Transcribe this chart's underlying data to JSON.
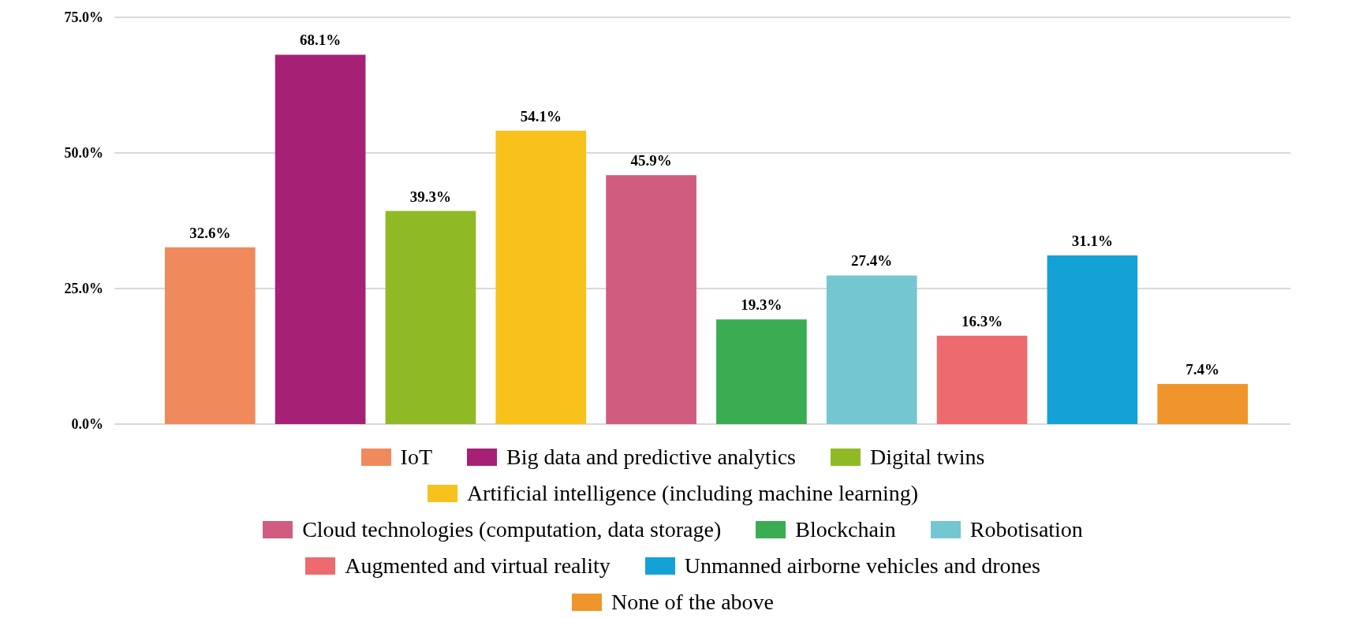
{
  "chart_data": {
    "type": "bar",
    "categories": [
      null
    ],
    "series": [
      {
        "name": "IoT",
        "color": "#f08a5d",
        "values": [
          32.6
        ],
        "value_labels": [
          "32.6%"
        ]
      },
      {
        "name": "Big data and predictive analytics",
        "color": "#a62175",
        "values": [
          68.1
        ],
        "value_labels": [
          "68.1%"
        ]
      },
      {
        "name": "Digital twins",
        "color": "#8fba26",
        "values": [
          39.3
        ],
        "value_labels": [
          "39.3%"
        ]
      },
      {
        "name": "Artificial intelligence (including machine learning)",
        "color": "#f8c11c",
        "values": [
          54.1
        ],
        "value_labels": [
          "54.1%"
        ]
      },
      {
        "name": "Cloud technologies (computation, data storage)",
        "color": "#d05c80",
        "values": [
          45.9
        ],
        "value_labels": [
          "45.9%"
        ]
      },
      {
        "name": "Blockchain",
        "color": "#3aad53",
        "values": [
          19.3
        ],
        "value_labels": [
          "19.3%"
        ]
      },
      {
        "name": "Robotisation",
        "color": "#74c6d1",
        "values": [
          27.4
        ],
        "value_labels": [
          "27.4%"
        ]
      },
      {
        "name": "Augmented and virtual reality",
        "color": "#ed6b6e",
        "values": [
          16.3
        ],
        "value_labels": [
          "16.3%"
        ]
      },
      {
        "name": "Unmanned airborne vehicles and drones",
        "color": "#14a2d6",
        "values": [
          31.1
        ],
        "value_labels": [
          "31.1%"
        ]
      },
      {
        "name": "None of the above",
        "color": "#f0952b",
        "values": [
          7.4
        ],
        "value_labels": [
          "7.4%"
        ]
      }
    ],
    "ylim": [
      0,
      75
    ],
    "yticks": [
      {
        "value": 0,
        "label": "0.0%"
      },
      {
        "value": 25,
        "label": "25.0%"
      },
      {
        "value": 50,
        "label": "50.0%"
      },
      {
        "value": 75,
        "label": "75.0%"
      }
    ],
    "grid": "y",
    "legend": "bottom"
  }
}
